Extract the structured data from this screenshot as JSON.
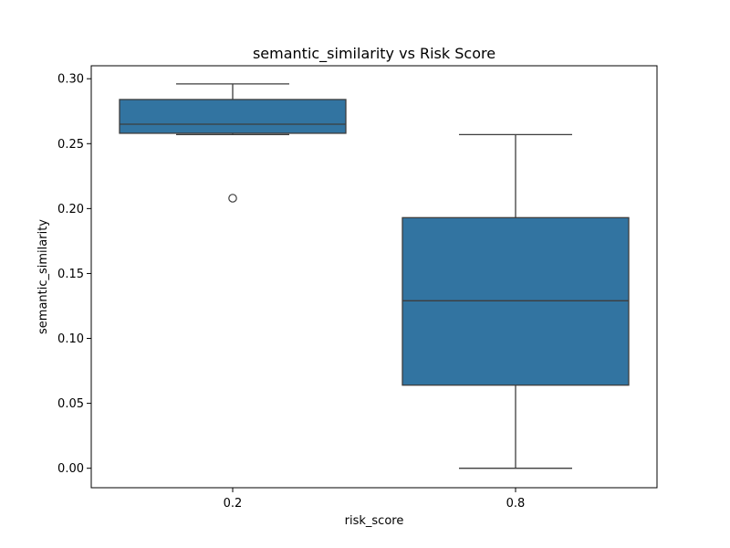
{
  "chart_data": {
    "type": "box",
    "title": "semantic_similarity vs Risk Score",
    "xlabel": "risk_score",
    "ylabel": "semantic_similarity",
    "categories": [
      "0.2",
      "0.8"
    ],
    "ylim": [
      -0.015,
      0.31
    ],
    "yticks": [
      "0.00",
      "0.05",
      "0.10",
      "0.15",
      "0.20",
      "0.25",
      "0.30"
    ],
    "box_color": "#3274a1",
    "line_color": "#3d3d3d",
    "boxes": [
      {
        "category": "0.2",
        "whisker_low": 0.257,
        "q1": 0.258,
        "median": 0.265,
        "q3": 0.284,
        "whisker_high": 0.296,
        "outliers": [
          0.208
        ]
      },
      {
        "category": "0.8",
        "whisker_low": 0.0,
        "q1": 0.064,
        "median": 0.129,
        "q3": 0.193,
        "whisker_high": 0.257,
        "outliers": []
      }
    ],
    "grid": false,
    "legend": "none"
  }
}
